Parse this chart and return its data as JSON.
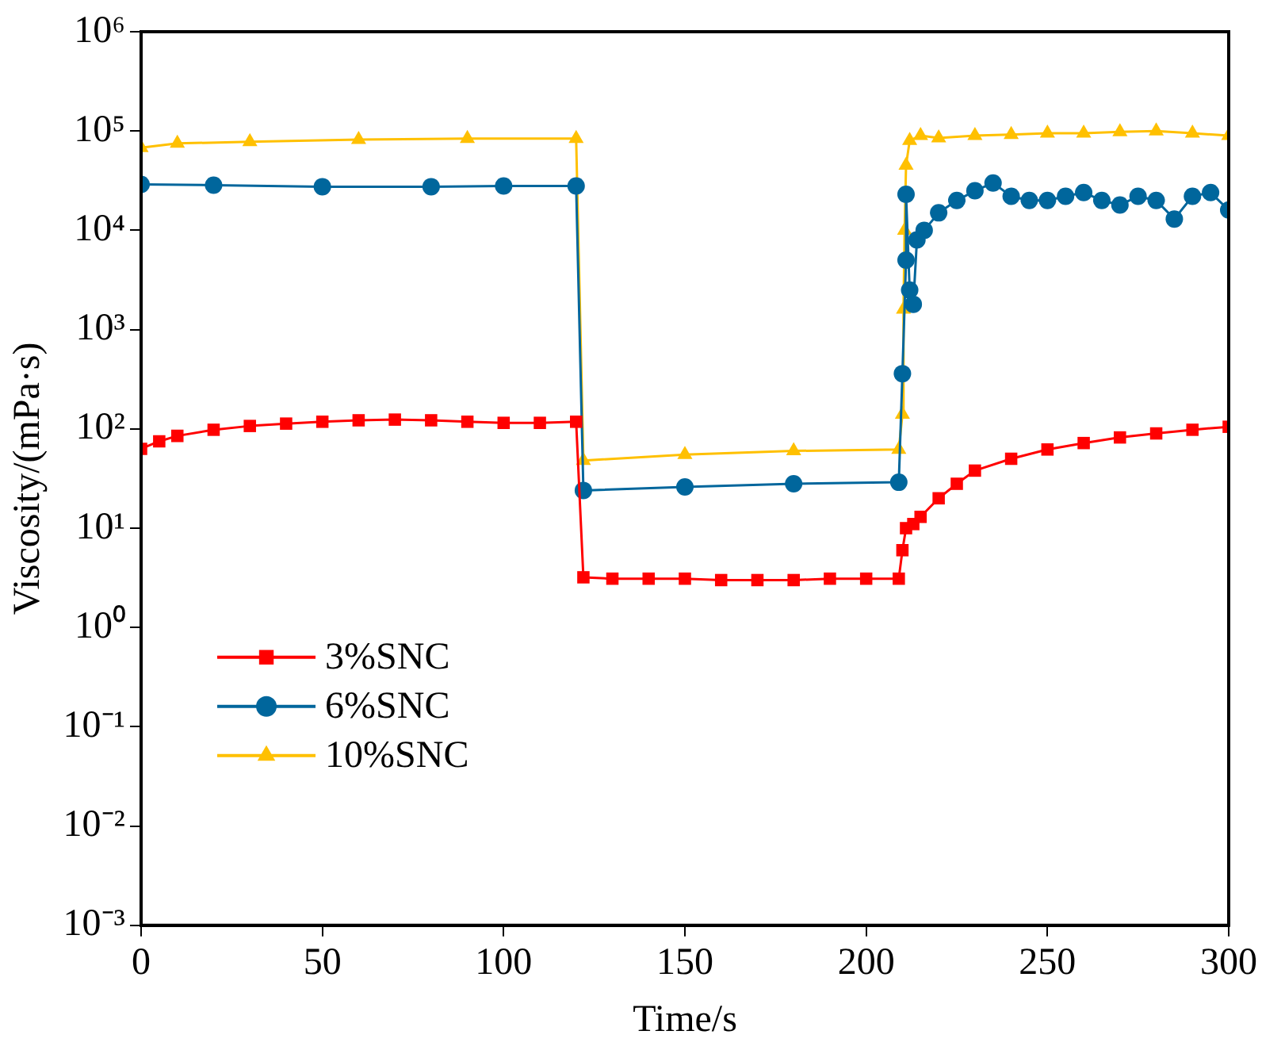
{
  "chart_data": {
    "type": "line",
    "xlabel": "Time/s",
    "ylabel": "Viscosity/(mPa·s)",
    "log": "y",
    "xlim": [
      0,
      300
    ],
    "xticks": [
      0,
      50,
      100,
      150,
      200,
      250,
      300
    ],
    "ylim": [
      0.001,
      1000000
    ],
    "yticks": [
      {
        "value": 0.001,
        "label": "10⁻³"
      },
      {
        "value": 0.01,
        "label": "10⁻²"
      },
      {
        "value": 0.1,
        "label": "10⁻¹"
      },
      {
        "value": 1,
        "label": "10⁰"
      },
      {
        "value": 10,
        "label": "10¹"
      },
      {
        "value": 100,
        "label": "10²"
      },
      {
        "value": 1000,
        "label": "10³"
      },
      {
        "value": 10000,
        "label": "10⁴"
      },
      {
        "value": 100000,
        "label": "10⁵"
      },
      {
        "value": 1000000,
        "label": "10⁶"
      }
    ],
    "grid": false,
    "legend": "left",
    "line_style": "solid",
    "series": [
      {
        "name": "3%SNC",
        "color": "#ff0000",
        "marker": "square",
        "x": [
          0,
          5,
          10,
          20,
          30,
          40,
          50,
          60,
          70,
          80,
          90,
          100,
          110,
          120,
          122,
          130,
          140,
          150,
          160,
          170,
          180,
          190,
          200,
          209,
          210,
          211,
          213,
          215,
          220,
          225,
          230,
          240,
          250,
          260,
          270,
          280,
          290,
          300
        ],
        "values": [
          63,
          75,
          85,
          98,
          107,
          113,
          118,
          122,
          124,
          122,
          118,
          115,
          115,
          118,
          3.2,
          3.1,
          3.1,
          3.1,
          3.0,
          3.0,
          3.0,
          3.1,
          3.1,
          3.1,
          6,
          10,
          11,
          13,
          20,
          28,
          38,
          50,
          62,
          72,
          82,
          90,
          98,
          105
        ]
      },
      {
        "name": "6%SNC",
        "color": "#00669c",
        "marker": "circle",
        "x": [
          0,
          20,
          50,
          80,
          100,
          120,
          122,
          150,
          180,
          209,
          210,
          211,
          211,
          212,
          213,
          214,
          216,
          220,
          225,
          230,
          235,
          240,
          245,
          250,
          255,
          260,
          265,
          270,
          275,
          280,
          285,
          290,
          295,
          300
        ],
        "values": [
          29000,
          28500,
          27500,
          27500,
          28000,
          28000,
          24,
          26,
          28,
          29,
          360,
          5000,
          23000,
          2500,
          1800,
          8000,
          10000,
          15000,
          20000,
          25000,
          30000,
          22000,
          20000,
          20000,
          22000,
          24000,
          20000,
          18000,
          22000,
          20000,
          13000,
          22000,
          24000,
          16000
        ]
      },
      {
        "name": "10%SNC",
        "color": "#ffc000",
        "marker": "triangle",
        "x": [
          0,
          10,
          30,
          60,
          90,
          120,
          122,
          150,
          180,
          209,
          210,
          210.3,
          210.6,
          211,
          212,
          215,
          220,
          230,
          240,
          250,
          260,
          270,
          280,
          290,
          300
        ],
        "values": [
          68000,
          75000,
          78000,
          82000,
          84000,
          84000,
          48,
          55,
          60,
          62,
          140,
          1600,
          10000,
          45000,
          80000,
          90000,
          85000,
          90000,
          92000,
          95000,
          95000,
          98000,
          100000,
          95000,
          90000
        ]
      }
    ]
  }
}
